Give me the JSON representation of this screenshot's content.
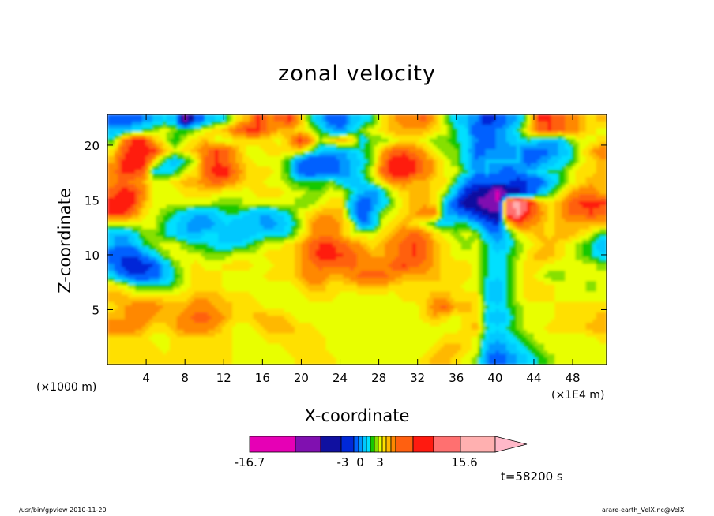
{
  "chart_data": {
    "type": "heatmap",
    "subtype": "filled-contour",
    "title": "zonal velocity",
    "xlabel": "X-coordinate",
    "ylabel": "Z-coordinate",
    "x_unit_left": "(×1000 m)",
    "x_unit_right": "(×1E4 m)",
    "xlim": [
      0,
      51.5
    ],
    "ylim": [
      0,
      22.8
    ],
    "x_ticks": [
      4,
      8,
      12,
      16,
      20,
      24,
      28,
      32,
      36,
      40,
      44,
      48
    ],
    "y_ticks": [
      5,
      10,
      15,
      20
    ],
    "colorbar": {
      "levels": [
        -16.7,
        -3,
        0,
        3,
        15.6
      ],
      "tick_labels": [
        "-16.7",
        "-3",
        "0",
        "3",
        "15.6"
      ],
      "colors": [
        "#e600b5",
        "#8010b0",
        "#1010a0",
        "#0028d8",
        "#0060ff",
        "#0098ff",
        "#00c8ff",
        "#00e0ff",
        "#16c800",
        "#86e000",
        "#e8ff00",
        "#ffe000",
        "#ffb800",
        "#ff8800",
        "#ff6010",
        "#ff1a10",
        "#ff7070",
        "#ffb0b0"
      ],
      "extend": "max"
    },
    "time_label": "t=58200 s",
    "field": {
      "nx": 48,
      "ny": 24,
      "note": "coarse reconstruction of the contoured u field, rows from top (z high) to bottom (z low)",
      "values": [
        [
          -5,
          -5,
          -5,
          -4,
          -3,
          -2,
          -3,
          -12,
          -6,
          -3,
          -2,
          -1,
          2,
          3,
          6,
          4,
          5,
          6,
          3,
          -1,
          -3,
          -5,
          -5,
          -3,
          -2,
          -1,
          2,
          3,
          4,
          4,
          5,
          3,
          0,
          -2,
          -3,
          -4,
          -8,
          -6,
          -4,
          -3,
          1,
          6,
          6,
          5,
          4,
          3,
          2,
          3
        ],
        [
          -3,
          -3,
          -2,
          -1,
          0,
          1,
          0,
          -1,
          0,
          1,
          2,
          3,
          5,
          6,
          6,
          4,
          3,
          3,
          2,
          1,
          -1,
          -3,
          -4,
          -2,
          0,
          1,
          2,
          3,
          3,
          3,
          3,
          2,
          1,
          -1,
          -2,
          -6,
          -5,
          -4,
          -3,
          -1,
          2,
          5,
          6,
          5,
          4,
          3,
          2,
          1
        ],
        [
          -1,
          4,
          6,
          6,
          3,
          1,
          -1,
          1,
          2,
          3,
          1,
          1,
          2,
          2,
          2,
          2,
          1,
          3,
          6,
          4,
          0,
          2,
          3,
          2,
          -2,
          0,
          0,
          1,
          2,
          2,
          1,
          0,
          0,
          -1,
          -2,
          -4,
          -6,
          -4,
          -3,
          -2,
          -1,
          -2,
          -3,
          -3,
          0,
          1,
          1,
          2
        ],
        [
          2,
          5,
          7,
          8,
          6,
          3,
          1,
          2,
          3,
          4,
          6,
          5,
          3,
          1,
          1,
          2,
          2,
          2,
          2,
          0,
          -2,
          -3,
          -3,
          -2,
          -1,
          0,
          3,
          5,
          5,
          4,
          3,
          1,
          0,
          0,
          -2,
          -5,
          -4,
          -4,
          -4,
          -3,
          -5,
          -5,
          -4,
          -3,
          -2,
          1,
          3,
          4
        ],
        [
          3,
          6,
          8,
          7,
          2,
          -1,
          -3,
          -1,
          1,
          5,
          6,
          5,
          3,
          2,
          1,
          1,
          1,
          -1,
          -4,
          -6,
          -5,
          -5,
          -4,
          -3,
          -2,
          0,
          4,
          7,
          8,
          6,
          4,
          3,
          1,
          0,
          -2,
          -4,
          -3,
          -3,
          -3,
          -3,
          -5,
          -4,
          -3,
          -2,
          -1,
          1,
          2,
          3
        ],
        [
          4,
          6,
          6,
          5,
          -2,
          -2,
          -1,
          1,
          2,
          5,
          7,
          7,
          4,
          2,
          2,
          2,
          1,
          -1,
          -5,
          -6,
          -5,
          -5,
          -4,
          -3,
          -1,
          1,
          5,
          8,
          8,
          6,
          4,
          3,
          1,
          1,
          -1,
          -4,
          -3,
          -4,
          -5,
          -4,
          -3,
          -2,
          -1,
          -1,
          1,
          2,
          2,
          3
        ],
        [
          4,
          5,
          4,
          3,
          1,
          1,
          2,
          3,
          3,
          4,
          5,
          4,
          3,
          2,
          2,
          1,
          1,
          0,
          -1,
          -1,
          -1,
          0,
          -2,
          -3,
          -2,
          0,
          2,
          4,
          4,
          3,
          3,
          2,
          2,
          -1,
          -4,
          -6,
          -5,
          -6,
          -6,
          -7,
          -6,
          -5,
          -3,
          -1,
          1,
          2,
          3,
          3
        ],
        [
          5,
          7,
          6,
          4,
          1,
          1,
          1,
          2,
          2,
          2,
          2,
          1,
          1,
          1,
          2,
          2,
          2,
          1,
          1,
          0,
          0,
          1,
          1,
          -1,
          -3,
          -4,
          -2,
          1,
          2,
          3,
          3,
          2,
          0,
          -3,
          -7,
          -9,
          -10,
          -16,
          -10,
          -9,
          -6,
          -3,
          -1,
          1,
          3,
          4,
          4,
          3
        ],
        [
          7,
          8,
          6,
          3,
          1,
          1,
          1,
          1,
          1,
          1,
          0,
          0,
          0,
          1,
          1,
          1,
          1,
          1,
          0,
          0,
          1,
          2,
          2,
          -3,
          -5,
          -4,
          -2,
          0,
          2,
          3,
          3,
          2,
          -2,
          -6,
          -10,
          -11,
          -14,
          -13,
          10,
          14,
          8,
          3,
          2,
          3,
          5,
          6,
          7,
          6
        ],
        [
          6,
          6,
          4,
          2,
          1,
          0,
          -1,
          -2,
          -3,
          -3,
          -2,
          -1,
          -1,
          -2,
          -3,
          -3,
          -2,
          -1,
          1,
          2,
          3,
          3,
          3,
          -3,
          -6,
          -3,
          0,
          1,
          2,
          3,
          4,
          4,
          -3,
          -4,
          -5,
          -7,
          -9,
          -11,
          9,
          12,
          6,
          4,
          2,
          3,
          5,
          5,
          6,
          5
        ],
        [
          1,
          1,
          1,
          1,
          1,
          -1,
          -2,
          -3,
          -4,
          -4,
          -3,
          -2,
          -3,
          -3,
          -3,
          -4,
          -3,
          -2,
          0,
          3,
          4,
          4,
          3,
          1,
          -4,
          -3,
          1,
          2,
          3,
          2,
          1,
          -1,
          -2,
          -1,
          -1,
          -3,
          -5,
          -7,
          2,
          5,
          4,
          3,
          2,
          3,
          3,
          3,
          3,
          3
        ],
        [
          -3,
          -3,
          -2,
          0,
          0,
          -1,
          -2,
          -3,
          -3,
          -2,
          -2,
          -3,
          -3,
          -3,
          -2,
          -2,
          -2,
          -1,
          1,
          3,
          4,
          4,
          3,
          1,
          1,
          1,
          2,
          3,
          4,
          5,
          4,
          2,
          1,
          0,
          1,
          0,
          -3,
          -4,
          -2,
          1,
          2,
          3,
          2,
          3,
          3,
          2,
          1,
          -1
        ],
        [
          -3,
          -4,
          -3,
          -1,
          0,
          1,
          1,
          0,
          -1,
          -1,
          -2,
          -2,
          -2,
          -1,
          0,
          1,
          1,
          2,
          3,
          5,
          6,
          6,
          5,
          4,
          3,
          2,
          3,
          4,
          5,
          6,
          5,
          3,
          2,
          1,
          0,
          1,
          -1,
          -3,
          -2,
          0,
          1,
          2,
          3,
          2,
          1,
          0,
          -1,
          -3
        ],
        [
          -5,
          -6,
          -6,
          -4,
          -2,
          0,
          1,
          1,
          1,
          0,
          0,
          0,
          1,
          1,
          1,
          2,
          2,
          2,
          3,
          5,
          7,
          7,
          6,
          5,
          4,
          3,
          3,
          4,
          5,
          6,
          5,
          3,
          2,
          1,
          1,
          1,
          -1,
          -2,
          -1,
          0,
          2,
          3,
          3,
          2,
          1,
          0,
          -1,
          -2
        ],
        [
          -4,
          -7,
          -8,
          -7,
          -6,
          -3,
          0,
          1,
          2,
          1,
          1,
          2,
          2,
          2,
          1,
          1,
          2,
          2,
          3,
          4,
          5,
          5,
          5,
          5,
          4,
          4,
          4,
          5,
          6,
          5,
          4,
          3,
          2,
          2,
          2,
          1,
          -1,
          -2,
          -1,
          1,
          2,
          2,
          1,
          1,
          1,
          1,
          1,
          0
        ],
        [
          -2,
          -4,
          -6,
          -6,
          -5,
          -3,
          -1,
          1,
          2,
          2,
          2,
          1,
          1,
          1,
          1,
          2,
          2,
          2,
          3,
          4,
          4,
          3,
          3,
          4,
          5,
          5,
          5,
          4,
          3,
          3,
          3,
          3,
          2,
          2,
          2,
          1,
          -1,
          -2,
          -1,
          1,
          2,
          1,
          0,
          0,
          1,
          1,
          1,
          1
        ],
        [
          2,
          1,
          0,
          -1,
          -1,
          -1,
          0,
          1,
          2,
          2,
          2,
          1,
          1,
          1,
          1,
          1,
          1,
          1,
          2,
          3,
          3,
          2,
          2,
          2,
          3,
          3,
          3,
          2,
          2,
          2,
          2,
          2,
          2,
          2,
          1,
          1,
          -2,
          -3,
          -1,
          1,
          2,
          2,
          2,
          1,
          1,
          1,
          0,
          1
        ],
        [
          3,
          3,
          2,
          2,
          2,
          2,
          2,
          2,
          3,
          3,
          3,
          2,
          2,
          2,
          1,
          1,
          1,
          1,
          1,
          2,
          2,
          2,
          1,
          1,
          1,
          1,
          1,
          1,
          2,
          2,
          2,
          3,
          3,
          2,
          2,
          2,
          -2,
          -3,
          -1,
          1,
          2,
          2,
          2,
          1,
          1,
          1,
          1,
          1
        ],
        [
          2,
          3,
          4,
          4,
          4,
          3,
          3,
          3,
          4,
          4,
          3,
          3,
          2,
          2,
          2,
          1,
          1,
          1,
          1,
          1,
          1,
          1,
          1,
          1,
          1,
          1,
          1,
          1,
          1,
          1,
          2,
          4,
          5,
          3,
          3,
          2,
          -1,
          -2,
          -1,
          0,
          1,
          1,
          1,
          2,
          2,
          2,
          2,
          2
        ],
        [
          3,
          3,
          4,
          4,
          3,
          3,
          3,
          4,
          5,
          5,
          4,
          3,
          2,
          2,
          3,
          3,
          3,
          2,
          1,
          1,
          1,
          1,
          1,
          1,
          1,
          1,
          1,
          1,
          1,
          1,
          2,
          3,
          2,
          1,
          2,
          2,
          -2,
          -3,
          -2,
          0,
          1,
          1,
          1,
          2,
          2,
          2,
          2,
          3
        ],
        [
          4,
          4,
          4,
          3,
          2,
          2,
          3,
          4,
          4,
          4,
          3,
          2,
          1,
          1,
          2,
          3,
          3,
          3,
          2,
          2,
          1,
          1,
          1,
          1,
          1,
          1,
          1,
          1,
          1,
          1,
          1,
          1,
          1,
          1,
          2,
          3,
          -1,
          -2,
          -1,
          0,
          1,
          1,
          2,
          2,
          2,
          2,
          3,
          3
        ],
        [
          2,
          2,
          2,
          2,
          1,
          1,
          2,
          2,
          2,
          2,
          2,
          2,
          1,
          1,
          1,
          2,
          2,
          2,
          2,
          2,
          2,
          1,
          1,
          1,
          1,
          1,
          1,
          1,
          1,
          1,
          1,
          1,
          2,
          2,
          2,
          1,
          -2,
          -3,
          -2,
          -1,
          0,
          1,
          1,
          1,
          1,
          1,
          1,
          2
        ],
        [
          2,
          2,
          2,
          2,
          2,
          1,
          2,
          2,
          2,
          2,
          2,
          2,
          1,
          1,
          1,
          1,
          1,
          2,
          2,
          2,
          2,
          1,
          1,
          1,
          1,
          1,
          1,
          1,
          1,
          1,
          1,
          2,
          3,
          3,
          2,
          1,
          -3,
          -4,
          -3,
          -2,
          -1,
          0,
          1,
          1,
          1,
          1,
          1,
          1
        ],
        [
          2,
          2,
          2,
          2,
          2,
          2,
          2,
          2,
          2,
          2,
          2,
          2,
          1,
          1,
          1,
          1,
          1,
          1,
          2,
          2,
          2,
          2,
          1,
          1,
          1,
          1,
          1,
          1,
          1,
          1,
          2,
          3,
          3,
          2,
          1,
          0,
          -4,
          -5,
          -4,
          -3,
          -2,
          -1,
          0,
          1,
          1,
          1,
          1,
          1
        ]
      ]
    }
  },
  "footer": {
    "left": "/usr/bin/gpview   2010-11-20",
    "right": "arare-earth_VelX.nc@VelX"
  }
}
